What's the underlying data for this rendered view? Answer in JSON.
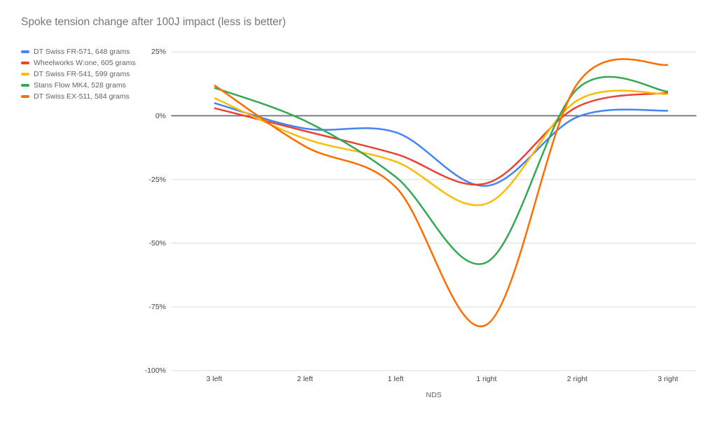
{
  "title": "Spoke tension change after 100J impact (less is better)",
  "chart_data": {
    "type": "line",
    "curve": "smooth",
    "title": "Spoke tension change after 100J impact (less is better)",
    "xlabel": "NDS",
    "ylabel": "",
    "categories": [
      "3 left",
      "2 left",
      "1 left",
      "1 right",
      "2 right",
      "3 right"
    ],
    "series": [
      {
        "name": "DT Swiss FR-571, 648 grams",
        "color": "#4285F4",
        "values": [
          5,
          -5,
          -6.5,
          -27.5,
          -0.5,
          2
        ]
      },
      {
        "name": "Wheelworks W:one, 605 grams",
        "color": "#EA4335",
        "values": [
          3,
          -6,
          -15,
          -26.5,
          3.5,
          9
        ]
      },
      {
        "name": "DT Swiss FR-541, 599 grams",
        "color": "#FBBC04",
        "values": [
          7,
          -9,
          -18,
          -34.5,
          6,
          8.5
        ]
      },
      {
        "name": "Stans Flow MK4, 528 grams",
        "color": "#34A853",
        "values": [
          11,
          -2,
          -24,
          -57.5,
          10.5,
          9.5
        ]
      },
      {
        "name": "DT Swiss EX-511, 584 grams",
        "color": "#FF6D01",
        "values": [
          12,
          -12,
          -28,
          -82,
          12.5,
          20
        ]
      }
    ],
    "y_ticks": [
      {
        "label": "25%",
        "value": 25
      },
      {
        "label": "0%",
        "value": 0
      },
      {
        "label": "-25%",
        "value": -25
      },
      {
        "label": "-50%",
        "value": -50
      },
      {
        "label": "-75%",
        "value": -75
      },
      {
        "label": "-100%",
        "value": -100
      }
    ],
    "ylim": [
      -100,
      25
    ],
    "baseline_value": 0,
    "grid": true,
    "legend_position": "left"
  },
  "colors": {
    "background": "#ffffff",
    "title_text": "#757575",
    "legend_text": "#5F6368",
    "tick_text": "#424242",
    "axis_title_text": "#616161",
    "gridline": "#E3E3E3",
    "baseline": "#6B6B6B"
  }
}
